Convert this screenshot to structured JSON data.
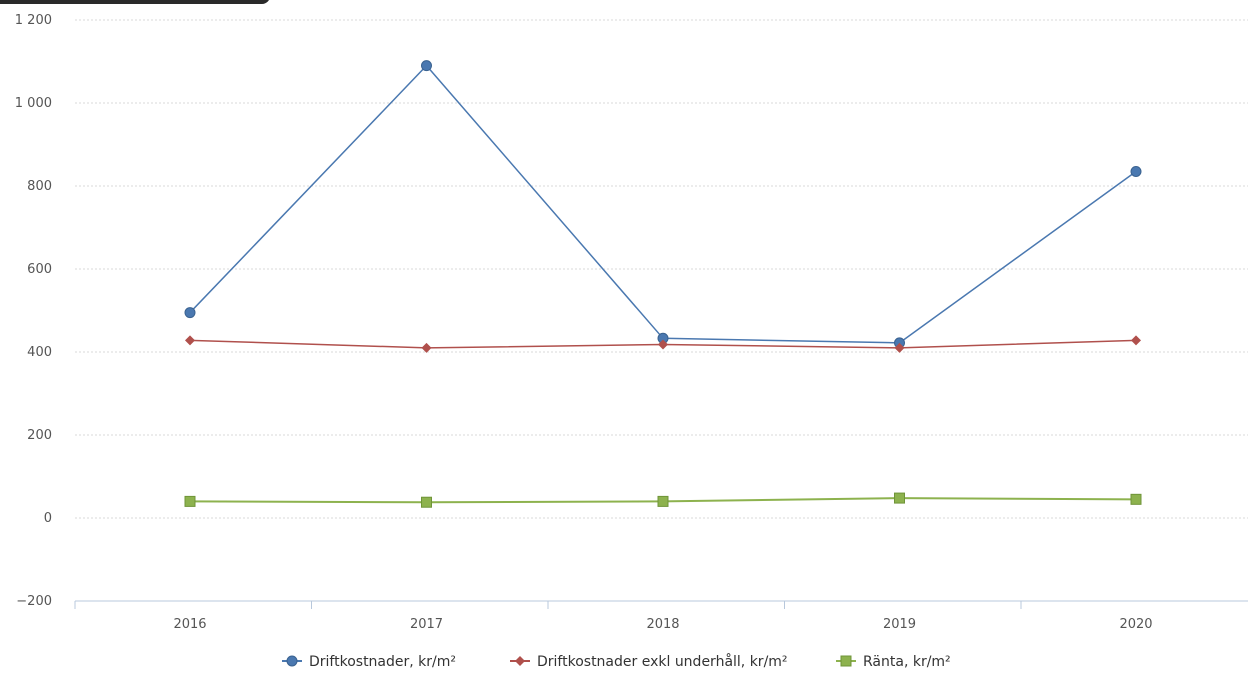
{
  "chart_data": {
    "type": "line",
    "title": "",
    "xlabel": "",
    "ylabel": "",
    "categories": [
      "2016",
      "2017",
      "2018",
      "2019",
      "2020"
    ],
    "ylim": [
      -200,
      1200
    ],
    "yticks": [
      -200,
      0,
      200,
      400,
      600,
      800,
      1000,
      1200
    ],
    "ytick_labels": [
      "−200",
      "0",
      "200",
      "400",
      "600",
      "800",
      "1 000",
      "1 200"
    ],
    "grid": true,
    "legend_position": "bottom",
    "series": [
      {
        "name": "Driftkostnader, kr/m²",
        "values": [
          495,
          1090,
          433,
          422,
          835
        ],
        "color": "#4a78b0",
        "marker": "circle"
      },
      {
        "name": "Driftkostnader exkl underhåll, kr/m²",
        "values": [
          428,
          410,
          418,
          410,
          428
        ],
        "color": "#b0504c",
        "marker": "diamond"
      },
      {
        "name": "Ränta, kr/m²",
        "values": [
          40,
          38,
          40,
          48,
          45
        ],
        "color": "#8db24e",
        "marker": "square"
      }
    ]
  }
}
